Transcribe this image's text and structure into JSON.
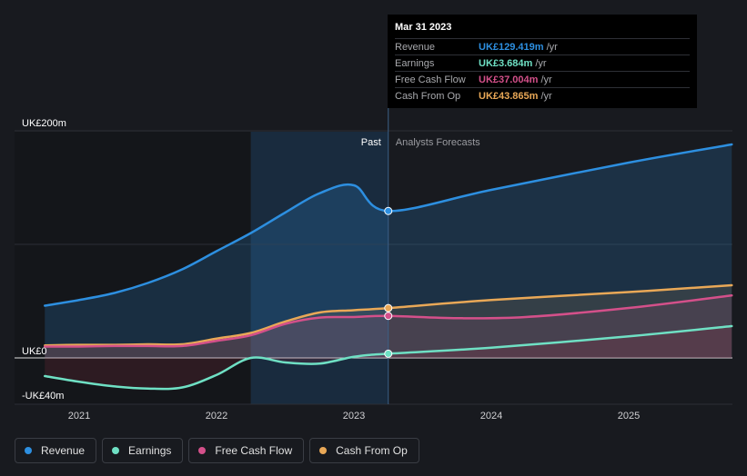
{
  "colors": {
    "revenue": "#2d8fe0",
    "earnings": "#6fe0c4",
    "fcf": "#d4508a",
    "cfo": "#e9a857",
    "background": "#181a1f"
  },
  "tooltip": {
    "date": "Mar 31 2023",
    "rows": [
      {
        "label": "Revenue",
        "value": "UK£129.419m",
        "unit": "/yr",
        "color": "#2d8fe0"
      },
      {
        "label": "Earnings",
        "value": "UK£3.684m",
        "unit": "/yr",
        "color": "#6fe0c4"
      },
      {
        "label": "Free Cash Flow",
        "value": "UK£37.004m",
        "unit": "/yr",
        "color": "#d4508a"
      },
      {
        "label": "Cash From Op",
        "value": "UK£43.865m",
        "unit": "/yr",
        "color": "#e9a857"
      }
    ]
  },
  "legend": [
    {
      "label": "Revenue",
      "color": "#2d8fe0"
    },
    {
      "label": "Earnings",
      "color": "#6fe0c4"
    },
    {
      "label": "Free Cash Flow",
      "color": "#d4508a"
    },
    {
      "label": "Cash From Op",
      "color": "#e9a857"
    }
  ],
  "chart_data": {
    "type": "line",
    "title": "",
    "xlabel": "",
    "ylabel": "",
    "unit_prefix": "UK£",
    "x_range": [
      2020.6,
      2025.75
    ],
    "ylim": [
      -40,
      200
    ],
    "y_tick_labels": [
      {
        "value": 200,
        "label": "UK£200m"
      },
      {
        "value": 0,
        "label": "UK£0"
      },
      {
        "value": -40,
        "label": "-UK£40m"
      }
    ],
    "x_tick_labels": [
      {
        "value": 2021,
        "label": "2021"
      },
      {
        "value": 2022,
        "label": "2022"
      },
      {
        "value": 2023,
        "label": "2023"
      },
      {
        "value": 2024,
        "label": "2024"
      },
      {
        "value": 2025,
        "label": "2025"
      }
    ],
    "past_label": "Past",
    "forecast_label": "Analysts Forecasts",
    "forecast_start": 2023.25,
    "highlight_start": 2022.25,
    "highlight_point": 2023.25,
    "series": [
      {
        "name": "Revenue",
        "key": "revenue",
        "points": [
          [
            2020.75,
            46
          ],
          [
            2021.0,
            51
          ],
          [
            2021.25,
            57
          ],
          [
            2021.5,
            66
          ],
          [
            2021.75,
            78
          ],
          [
            2022.0,
            94
          ],
          [
            2022.25,
            110
          ],
          [
            2022.5,
            128
          ],
          [
            2022.75,
            145
          ],
          [
            2023.0,
            152
          ],
          [
            2023.25,
            129.4
          ],
          [
            2024.0,
            148
          ],
          [
            2025.0,
            172
          ],
          [
            2025.75,
            188
          ]
        ]
      },
      {
        "name": "Earnings",
        "key": "earnings",
        "points": [
          [
            2020.75,
            -16
          ],
          [
            2021.0,
            -21
          ],
          [
            2021.25,
            -25
          ],
          [
            2021.5,
            -27
          ],
          [
            2021.75,
            -26
          ],
          [
            2022.0,
            -15
          ],
          [
            2022.25,
            0
          ],
          [
            2022.5,
            -4
          ],
          [
            2022.75,
            -5
          ],
          [
            2023.0,
            1
          ],
          [
            2023.25,
            3.7
          ],
          [
            2024.0,
            9
          ],
          [
            2025.0,
            19
          ],
          [
            2025.75,
            28
          ]
        ]
      },
      {
        "name": "Free Cash Flow",
        "key": "fcf",
        "points": [
          [
            2020.75,
            10
          ],
          [
            2021.0,
            10
          ],
          [
            2021.25,
            10.5
          ],
          [
            2021.5,
            10.5
          ],
          [
            2021.75,
            10.5
          ],
          [
            2022.0,
            15
          ],
          [
            2022.25,
            20
          ],
          [
            2022.5,
            30
          ],
          [
            2022.75,
            35.5
          ],
          [
            2023.0,
            36
          ],
          [
            2023.25,
            37
          ],
          [
            2023.75,
            35
          ],
          [
            2024.25,
            36
          ],
          [
            2025.0,
            44
          ],
          [
            2025.75,
            55
          ]
        ]
      },
      {
        "name": "Cash From Op",
        "key": "cfo",
        "points": [
          [
            2020.75,
            11
          ],
          [
            2021.0,
            11.5
          ],
          [
            2021.25,
            11.5
          ],
          [
            2021.5,
            12
          ],
          [
            2021.75,
            12
          ],
          [
            2022.0,
            17
          ],
          [
            2022.25,
            22
          ],
          [
            2022.5,
            32
          ],
          [
            2022.75,
            40
          ],
          [
            2023.0,
            42
          ],
          [
            2023.25,
            43.9
          ],
          [
            2024.0,
            51
          ],
          [
            2025.0,
            58
          ],
          [
            2025.75,
            64
          ]
        ]
      }
    ]
  }
}
